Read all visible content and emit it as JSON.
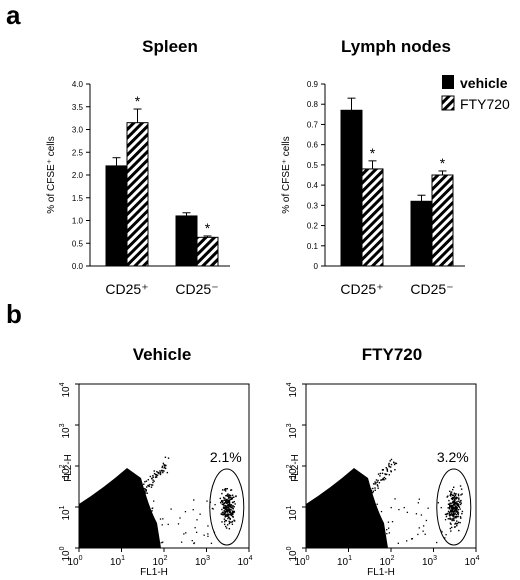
{
  "panels": {
    "a": "a",
    "b": "b"
  },
  "legend": {
    "items": [
      {
        "label": "vehicle",
        "fill": "solid"
      },
      {
        "label": "FTY720",
        "fill": "hatch"
      }
    ]
  },
  "chart_data": [
    {
      "type": "bar",
      "title": "Spleen",
      "ylabel": "% of CFSE⁺ cells",
      "categories": [
        "CD25⁺",
        "CD25⁻"
      ],
      "ylim": [
        0,
        4.0
      ],
      "yticks": [
        "0.0",
        "0.5",
        "1.0",
        "1.5",
        "2.0",
        "2.5",
        "3.0",
        "3.5",
        "4.0"
      ],
      "series": [
        {
          "name": "vehicle",
          "values": [
            2.2,
            1.1
          ],
          "errors": [
            0.18,
            0.07
          ]
        },
        {
          "name": "FTY720",
          "values": [
            3.15,
            0.63
          ],
          "errors": [
            0.3,
            0.03
          ]
        }
      ],
      "annotations": [
        {
          "series": "FTY720",
          "category": "CD25⁺",
          "text": "*"
        },
        {
          "series": "FTY720",
          "category": "CD25⁻",
          "text": "*"
        }
      ]
    },
    {
      "type": "bar",
      "title": "Lymph nodes",
      "ylabel": "% of CFSE⁺ cells",
      "categories": [
        "CD25⁺",
        "CD25⁻"
      ],
      "ylim": [
        0,
        0.9
      ],
      "yticks": [
        "0",
        "0.1",
        "0.2",
        "0.3",
        "0.4",
        "0.5",
        "0.6",
        "0.7",
        "0.8",
        "0.9"
      ],
      "series": [
        {
          "name": "vehicle",
          "values": [
            0.77,
            0.32
          ],
          "errors": [
            0.06,
            0.03
          ]
        },
        {
          "name": "FTY720",
          "values": [
            0.48,
            0.45
          ],
          "errors": [
            0.04,
            0.02
          ]
        }
      ],
      "annotations": [
        {
          "series": "FTY720",
          "category": "CD25⁺",
          "text": "*"
        },
        {
          "series": "FTY720",
          "category": "CD25⁻",
          "text": "*"
        }
      ]
    },
    {
      "type": "scatter",
      "title": "Vehicle",
      "xlabel": "FL1-H",
      "ylabel": "FL2-H",
      "x_scale": "log",
      "y_scale": "log",
      "xlim": [
        1,
        10000
      ],
      "ylim": [
        1,
        10000
      ],
      "gate_label": "2.1%",
      "gate_center": [
        3000,
        10
      ]
    },
    {
      "type": "scatter",
      "title": "FTY720",
      "xlabel": "FL1-H",
      "ylabel": "FL2-H",
      "x_scale": "log",
      "y_scale": "log",
      "xlim": [
        1,
        10000
      ],
      "ylim": [
        1,
        10000
      ],
      "gate_label": "3.2%",
      "gate_center": [
        3000,
        10
      ]
    }
  ]
}
